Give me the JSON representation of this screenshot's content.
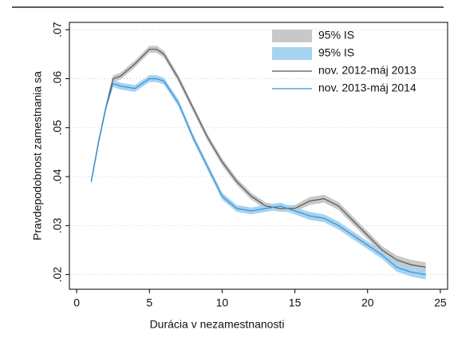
{
  "chart_data": {
    "type": "line",
    "xlabel": "Durácia v nezamestnanosti",
    "ylabel": "Pravdepodobnost zamestnania sa",
    "x": [
      1,
      1.5,
      2,
      2.5,
      3,
      4,
      5,
      5.5,
      6,
      7,
      8,
      9,
      10,
      11,
      12,
      13,
      14,
      15,
      16,
      17,
      18,
      19,
      20,
      21,
      22,
      23,
      24
    ],
    "series": [
      {
        "name": "nov. 2012-máj 2013",
        "color": "#555555",
        "band_name": "95% IS",
        "band_color": "#c8c8c8",
        "values": [
          0.039,
          0.047,
          0.054,
          0.06,
          0.0605,
          0.063,
          0.066,
          0.066,
          0.065,
          0.06,
          0.054,
          0.048,
          0.043,
          0.039,
          0.036,
          0.034,
          0.0335,
          0.0335,
          0.035,
          0.0355,
          0.034,
          0.031,
          0.028,
          0.025,
          0.023,
          0.022,
          0.0215
        ],
        "lower": [
          0.0383,
          0.0463,
          0.0533,
          0.0593,
          0.0598,
          0.0623,
          0.0653,
          0.0653,
          0.0643,
          0.0593,
          0.0533,
          0.0473,
          0.0423,
          0.0383,
          0.0353,
          0.0333,
          0.0328,
          0.0328,
          0.0342,
          0.0347,
          0.0332,
          0.0302,
          0.0272,
          0.0242,
          0.0221,
          0.021,
          0.0205
        ],
        "upper": [
          0.0397,
          0.0477,
          0.0547,
          0.0607,
          0.0612,
          0.0637,
          0.0667,
          0.0667,
          0.0657,
          0.0607,
          0.0547,
          0.0487,
          0.0437,
          0.0397,
          0.0367,
          0.0347,
          0.0342,
          0.0342,
          0.0358,
          0.0363,
          0.0348,
          0.0318,
          0.0288,
          0.0258,
          0.0239,
          0.023,
          0.0225
        ]
      },
      {
        "name": "nov. 2013-máj 2014",
        "color": "#3a8fd0",
        "band_name": "95% IS",
        "band_color": "#a6d3f0",
        "values": [
          0.039,
          0.047,
          0.054,
          0.059,
          0.0585,
          0.058,
          0.06,
          0.06,
          0.0595,
          0.055,
          0.048,
          0.042,
          0.036,
          0.0335,
          0.033,
          0.0335,
          0.034,
          0.033,
          0.032,
          0.0315,
          0.03,
          0.028,
          0.026,
          0.024,
          0.0215,
          0.0205,
          0.02
        ],
        "lower": [
          0.0383,
          0.0463,
          0.0533,
          0.0583,
          0.0578,
          0.0573,
          0.0593,
          0.0593,
          0.0588,
          0.0543,
          0.0473,
          0.0413,
          0.0353,
          0.0328,
          0.0323,
          0.0328,
          0.0333,
          0.0323,
          0.0312,
          0.0307,
          0.0292,
          0.0272,
          0.0252,
          0.0232,
          0.0206,
          0.0196,
          0.019
        ],
        "upper": [
          0.0397,
          0.0477,
          0.0547,
          0.0597,
          0.0592,
          0.0587,
          0.0607,
          0.0607,
          0.0602,
          0.0557,
          0.0487,
          0.0427,
          0.0367,
          0.0342,
          0.0337,
          0.0342,
          0.0347,
          0.0337,
          0.0328,
          0.0323,
          0.0308,
          0.0288,
          0.0268,
          0.0248,
          0.0224,
          0.0214,
          0.021
        ]
      }
    ],
    "xlim": [
      -0.5,
      25.5
    ],
    "xticks": [
      0,
      5,
      10,
      15,
      20,
      25
    ],
    "ylim": [
      0.017,
      0.0715
    ],
    "yticks": [
      {
        "value": 0.02,
        "label": ".02"
      },
      {
        "value": 0.03,
        "label": ".03"
      },
      {
        "value": 0.04,
        "label": ".04"
      },
      {
        "value": 0.05,
        "label": ".05"
      },
      {
        "value": 0.06,
        "label": ".06"
      },
      {
        "value": 0.07,
        "label": ".07"
      }
    ],
    "grid": true,
    "legend": "top-right"
  }
}
